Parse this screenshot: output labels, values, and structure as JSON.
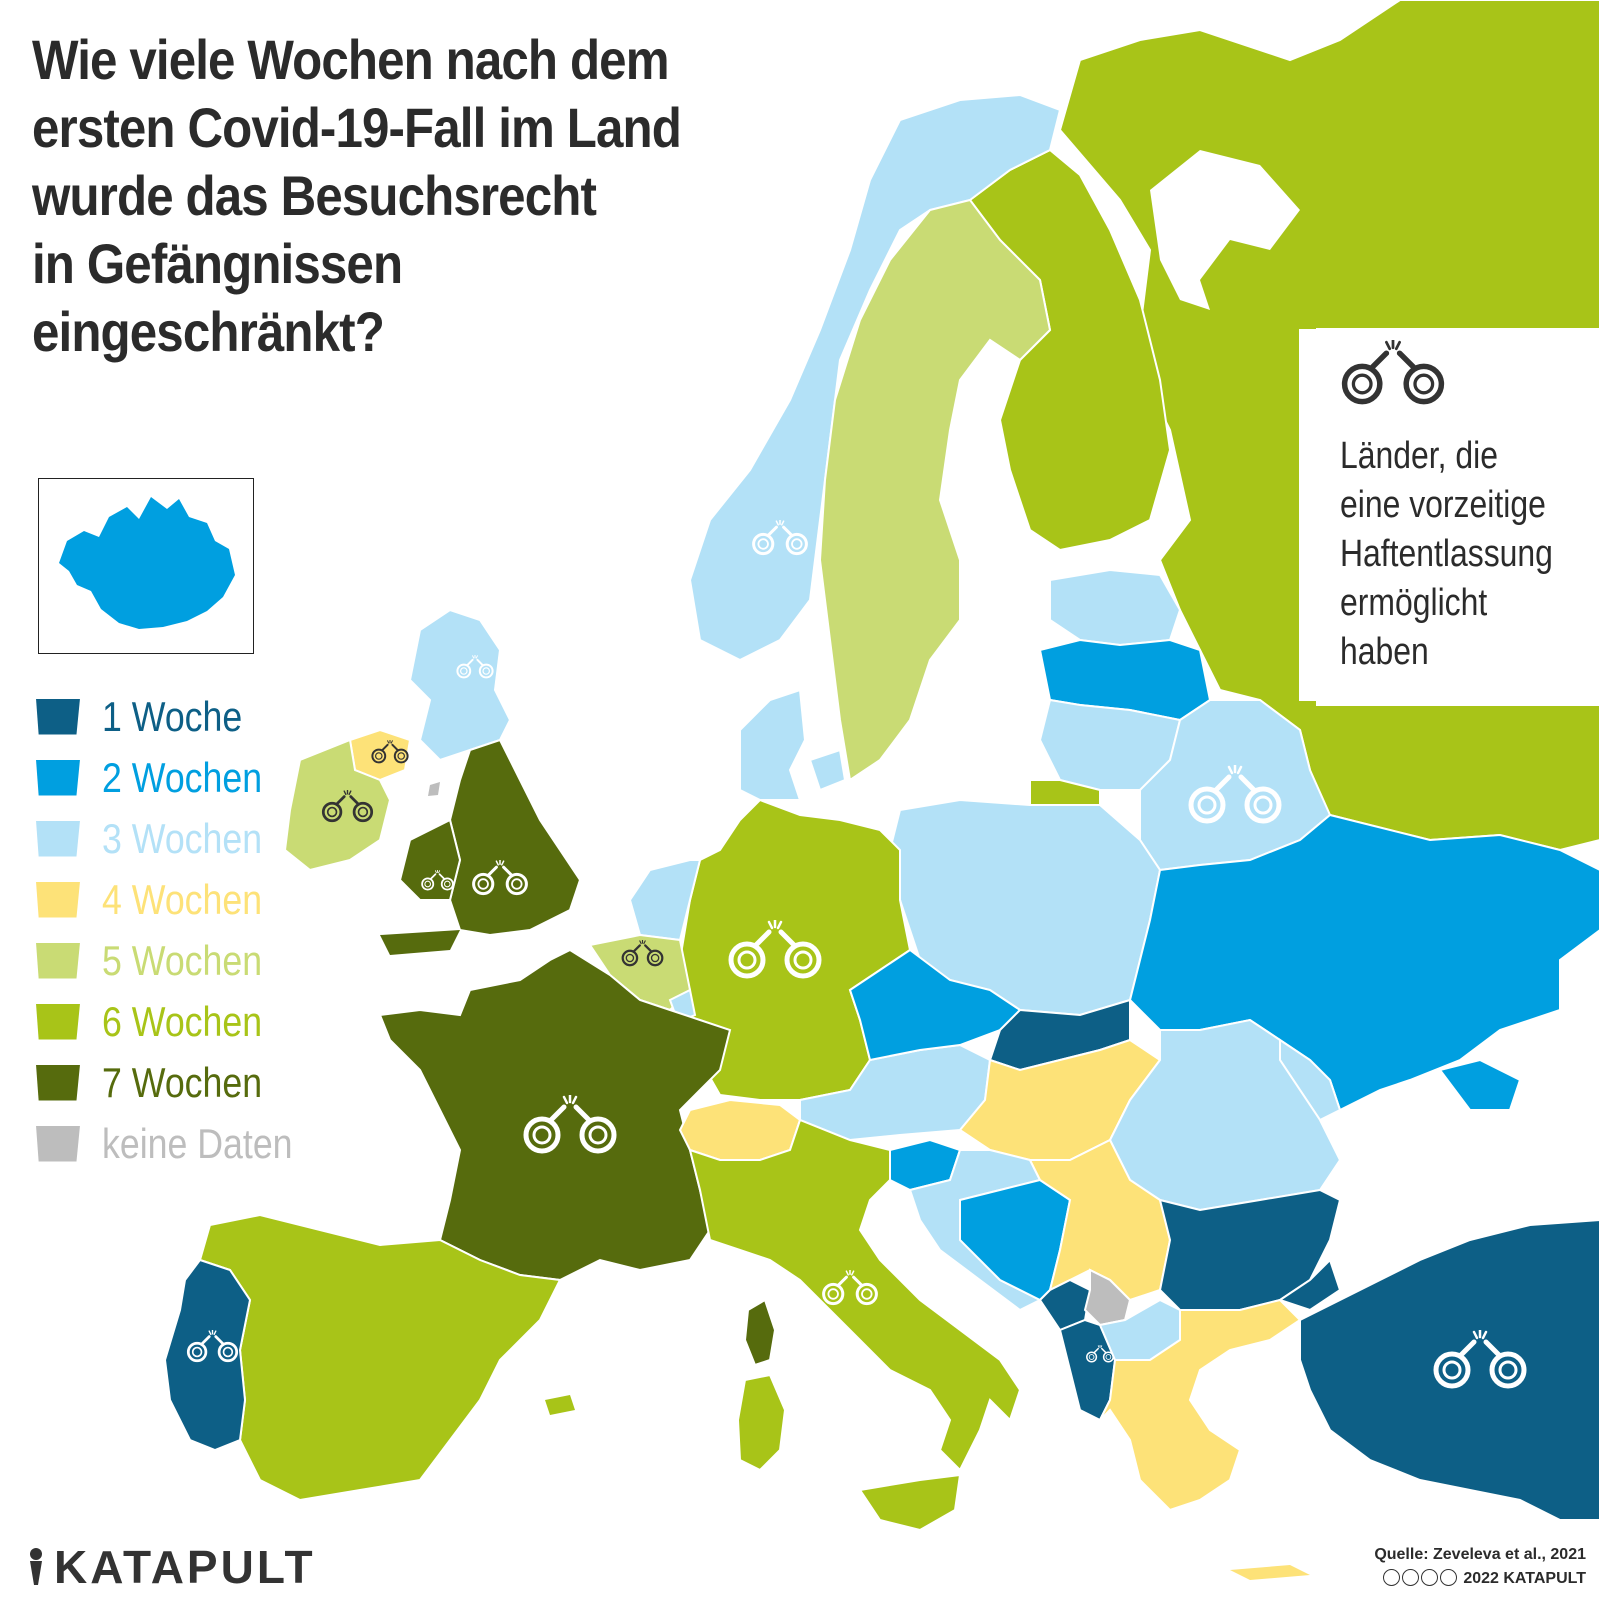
{
  "title": {
    "line1": "Wie viele Wochen nach dem",
    "line2": "ersten Covid-19-Fall im Land",
    "line3": "wurde das Besuchsrecht",
    "line4": "in Gefängnissen",
    "line5": "eingeschränkt?"
  },
  "legend": {
    "items": [
      {
        "label": "1 Woche",
        "color": "#0d5f86"
      },
      {
        "label": "2 Wochen",
        "color": "#009fe0"
      },
      {
        "label": "3 Wochen",
        "color": "#b3e1f7"
      },
      {
        "label": "4 Wochen",
        "color": "#fde278"
      },
      {
        "label": "5 Wochen",
        "color": "#c9db74"
      },
      {
        "label": "6 Wochen",
        "color": "#a8c418"
      },
      {
        "label": "7 Wochen",
        "color": "#566b0d"
      },
      {
        "label": "keine Daten",
        "color": "#bdbdbd"
      }
    ]
  },
  "note": {
    "icon": "handcuffs-icon",
    "line1": "Länder, die",
    "line2": "eine vorzeitige",
    "line3": "Haftentlassung",
    "line4": "ermöglicht",
    "line5": "haben"
  },
  "brand": {
    "name": "KATAPULT"
  },
  "source": {
    "line1": "Quelle:  Zeveleva et al., 2021",
    "line2": "2022 KATAPULT"
  },
  "colors": {
    "week1": "#0d5f86",
    "week2": "#009fe0",
    "week3": "#b3e1f7",
    "week4": "#fde278",
    "week5": "#c9db74",
    "week6": "#a8c418",
    "week7": "#566b0d",
    "nodata": "#bdbdbd",
    "sea": "#ffffff",
    "border": "#ffffff"
  }
}
